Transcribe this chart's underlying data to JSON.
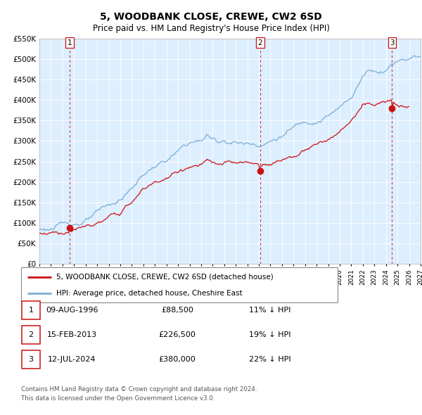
{
  "title": "5, WOODBANK CLOSE, CREWE, CW2 6SD",
  "subtitle": "Price paid vs. HM Land Registry's House Price Index (HPI)",
  "ylim": [
    0,
    550000
  ],
  "xlim_left": 1994,
  "xlim_right": 2027,
  "yticks": [
    0,
    50000,
    100000,
    150000,
    200000,
    250000,
    300000,
    350000,
    400000,
    450000,
    500000,
    550000
  ],
  "ytick_labels": [
    "£0",
    "£50K",
    "£100K",
    "£150K",
    "£200K",
    "£250K",
    "£300K",
    "£350K",
    "£400K",
    "£450K",
    "£500K",
    "£550K"
  ],
  "hpi_color": "#7aaed6",
  "price_color": "#cc1111",
  "vline_color": "#cc1111",
  "bg_color": "#ddeeff",
  "sale_dates": [
    1996.61,
    2013.12,
    2024.53
  ],
  "sale_prices": [
    88500,
    226500,
    380000
  ],
  "sale_labels": [
    "1",
    "2",
    "3"
  ],
  "legend_labels": [
    "5, WOODBANK CLOSE, CREWE, CW2 6SD (detached house)",
    "HPI: Average price, detached house, Cheshire East"
  ],
  "table_rows": [
    [
      "1",
      "09-AUG-1996",
      "£88,500",
      "11% ↓ HPI"
    ],
    [
      "2",
      "15-FEB-2013",
      "£226,500",
      "19% ↓ HPI"
    ],
    [
      "3",
      "12-JUL-2024",
      "£380,000",
      "22% ↓ HPI"
    ]
  ],
  "footnote1": "Contains HM Land Registry data © Crown copyright and database right 2024.",
  "footnote2": "This data is licensed under the Open Government Licence v3.0."
}
